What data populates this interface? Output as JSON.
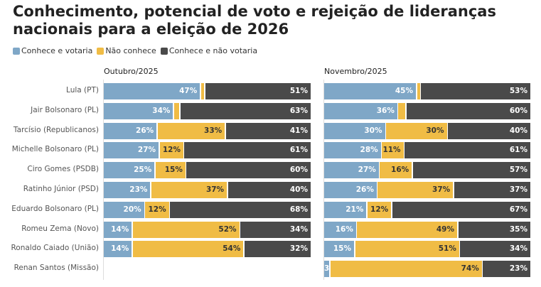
{
  "title": "Conhecimento, potencial de voto e rejeição de lideranças nacionais para a eleição de 2026",
  "chart_data": {
    "type": "bar",
    "stacked": true,
    "orientation": "horizontal",
    "title": "Conhecimento, potencial de voto e rejeição de lideranças nacionais para a eleição de 2026",
    "legend": [
      {
        "name": "Conhece e votaria",
        "color": "#7fa7c7"
      },
      {
        "name": "Não conhece",
        "color": "#f0bc45"
      },
      {
        "name": "Conhece e não votaria",
        "color": "#4a4a4a"
      }
    ],
    "legend_placement": "top-left",
    "categories": [
      "Lula (PT)",
      "Jair Bolsonaro (PL)",
      "Tarcísio (Republicanos)",
      "Michelle Bolsonaro (PL)",
      "Ciro Gomes (PSDB)",
      "Ratinho Júnior (PSD)",
      "Eduardo Bolsonaro (PL)",
      "Romeu Zema (Novo)",
      "Ronaldo Caiado (União)",
      "Renan Santos (Missão)"
    ],
    "panels": [
      {
        "title": "Outubro/2025",
        "series": [
          {
            "name": "Conhece e votaria",
            "values": [
              47,
              34,
              26,
              27,
              25,
              23,
              20,
              14,
              14,
              null
            ]
          },
          {
            "name": "Não conhece",
            "values": [
              2,
              3,
              33,
              12,
              15,
              37,
              12,
              52,
              54,
              null
            ]
          },
          {
            "name": "Conhece e não votaria",
            "values": [
              51,
              63,
              41,
              61,
              60,
              40,
              68,
              34,
              32,
              null
            ]
          }
        ]
      },
      {
        "title": "Novembro/2025",
        "series": [
          {
            "name": "Conhece e votaria",
            "values": [
              45,
              36,
              30,
              28,
              27,
              26,
              21,
              16,
              15,
              3
            ]
          },
          {
            "name": "Não conhece",
            "values": [
              2,
              4,
              30,
              11,
              16,
              37,
              12,
              49,
              51,
              74
            ]
          },
          {
            "name": "Conhece e não votaria",
            "values": [
              53,
              60,
              40,
              61,
              57,
              37,
              67,
              35,
              34,
              23
            ]
          }
        ]
      }
    ],
    "xlim": [
      0,
      100
    ]
  }
}
